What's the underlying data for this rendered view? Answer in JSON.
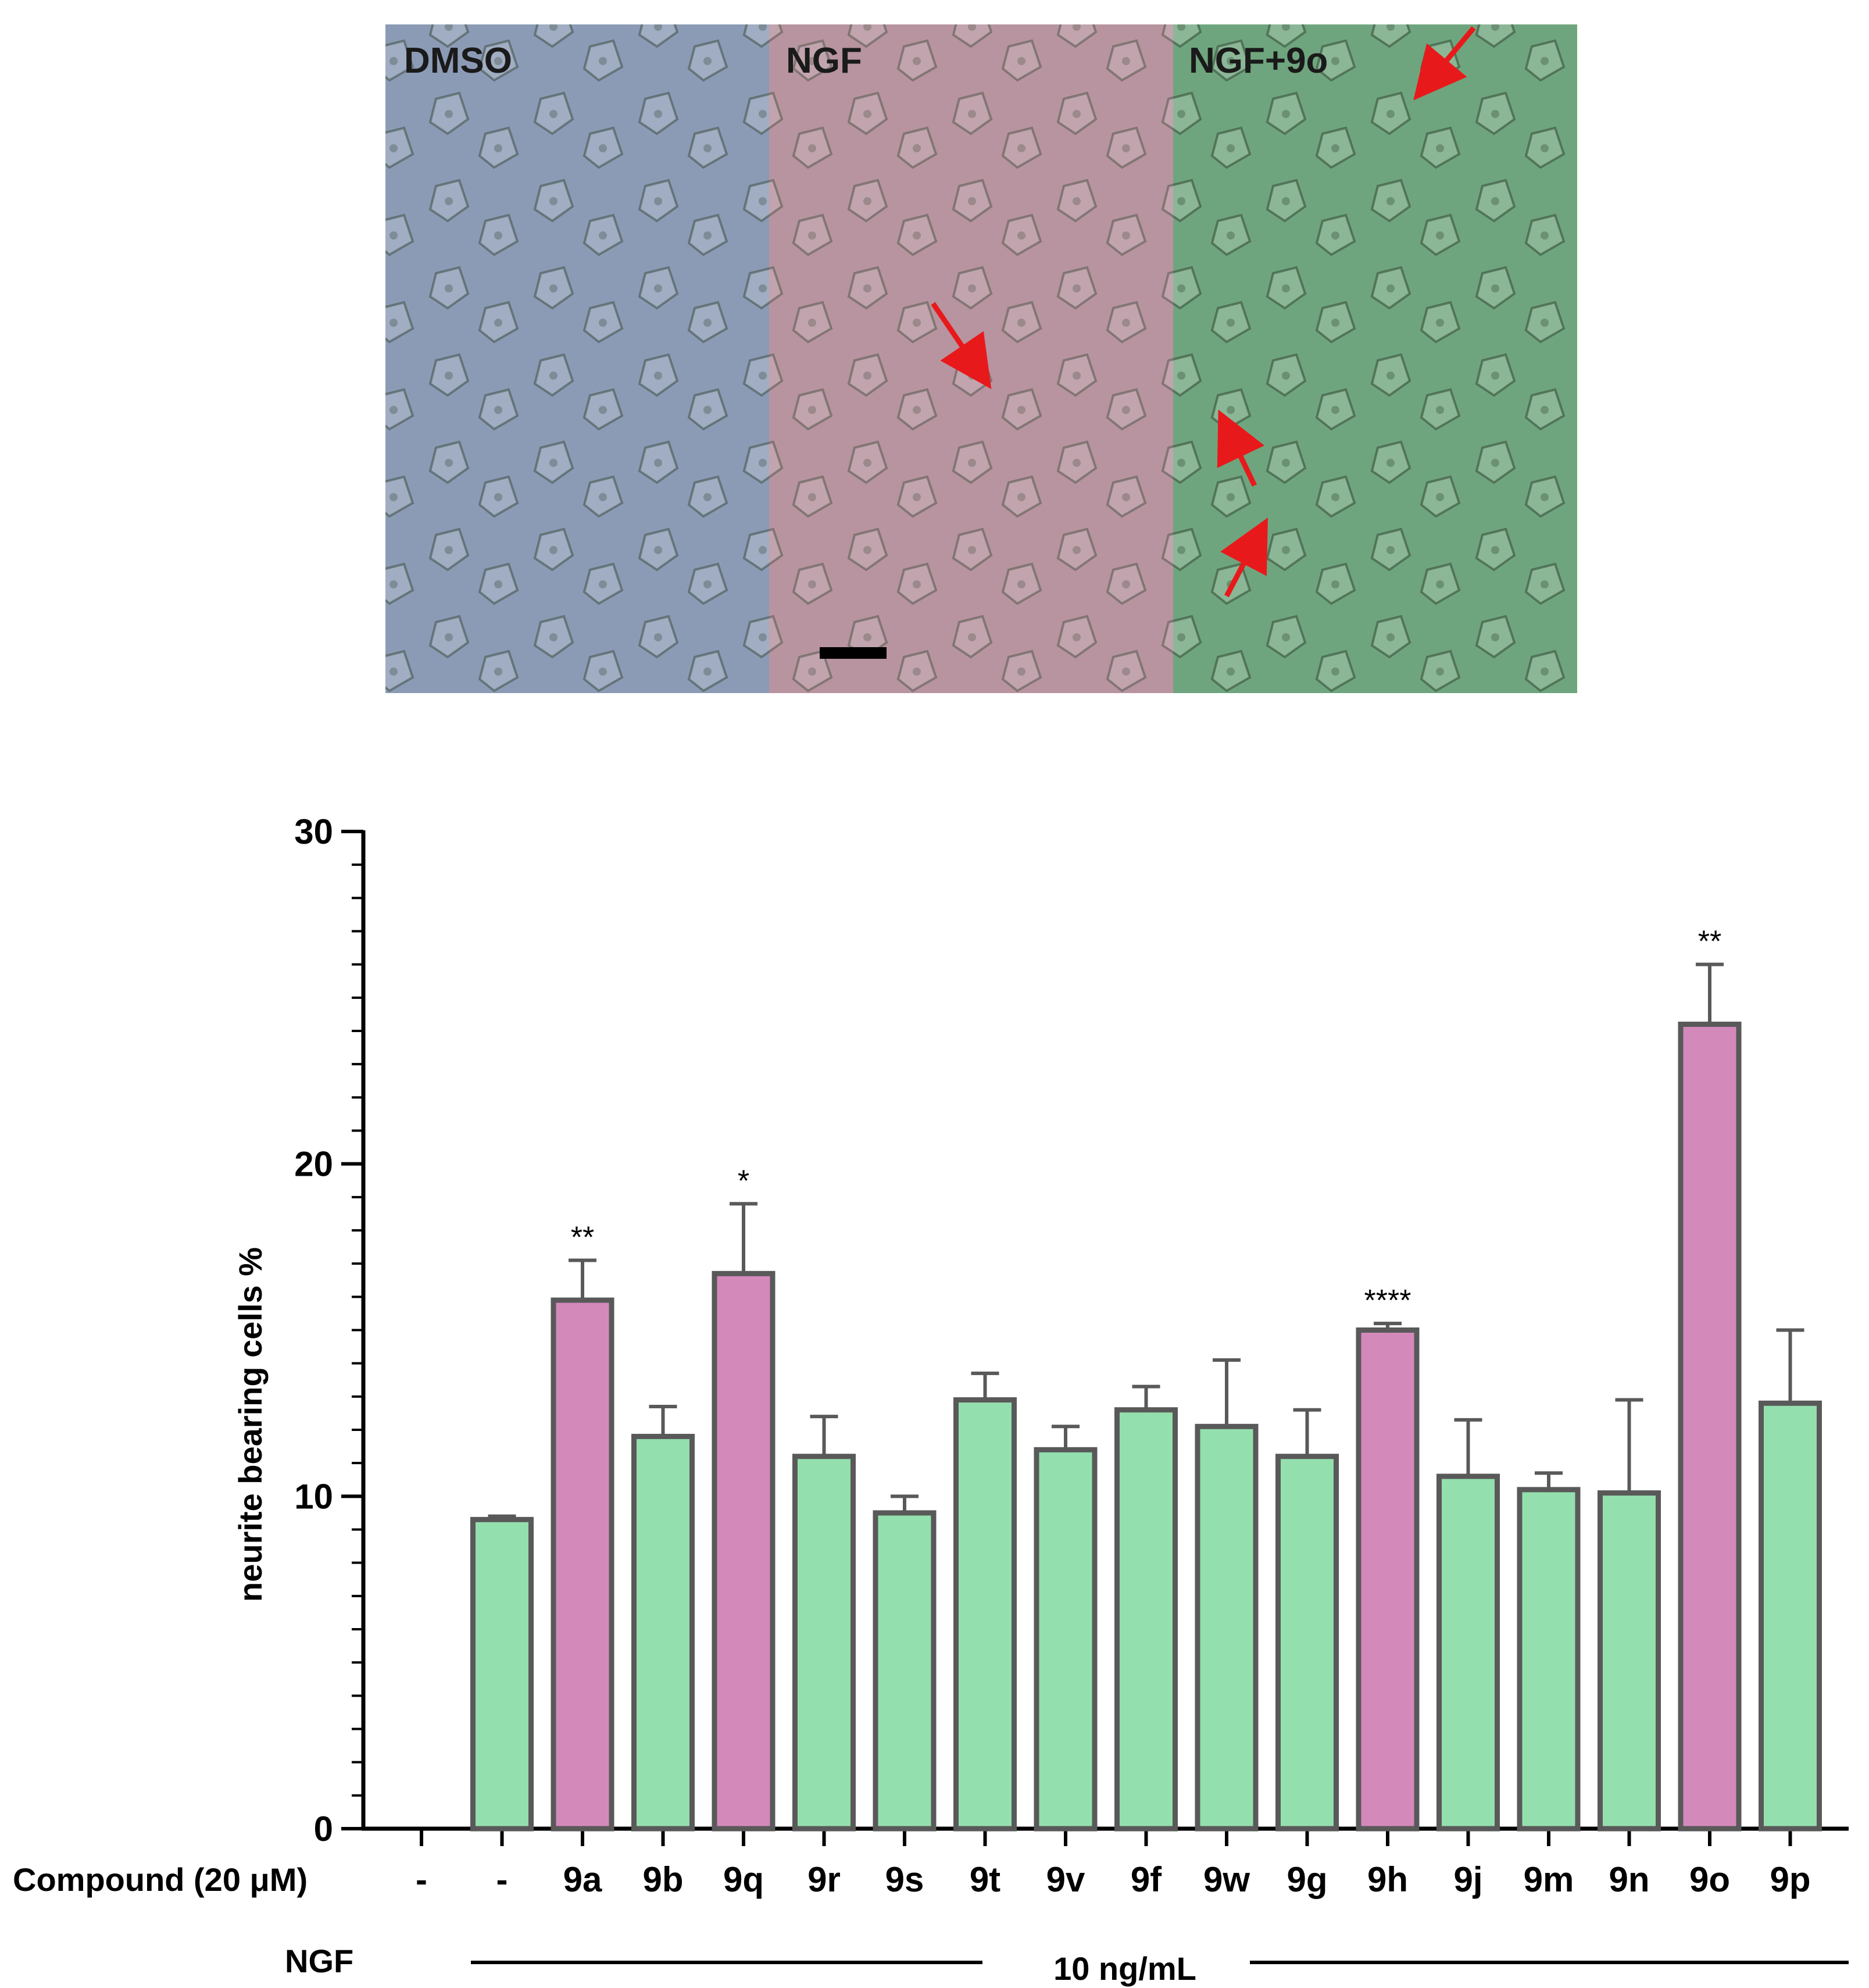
{
  "micrographs": {
    "panels": [
      {
        "label": "DMSO",
        "bg": "#8c9bb5"
      },
      {
        "label": "NGF",
        "bg": "#b7949f"
      },
      {
        "label": "NGF+9o",
        "bg": "#6fa57e"
      }
    ],
    "arrow_color": "#e8191b"
  },
  "chart_data": {
    "type": "bar",
    "ylabel": "neurite bearing cells %",
    "ylim": [
      0,
      30
    ],
    "yticks": [
      "0",
      "10",
      "20",
      "30"
    ],
    "x_axis_label": "Compound (20 μM)",
    "group_label_row": "NGF",
    "group_label_value": "10 ng/mL",
    "categories": [
      "-",
      "-",
      "9a",
      "9b",
      "9q",
      "9r",
      "9s",
      "9t",
      "9v",
      "9f",
      "9w",
      "9g",
      "9h",
      "9j",
      "9m",
      "9n",
      "9o",
      "9p"
    ],
    "values": [
      null,
      9.3,
      15.9,
      11.8,
      16.7,
      11.2,
      9.5,
      12.9,
      11.4,
      12.6,
      12.1,
      11.2,
      15.0,
      10.6,
      10.2,
      10.1,
      24.2,
      12.8
    ],
    "errors": [
      null,
      0.1,
      1.2,
      0.9,
      2.1,
      1.2,
      0.5,
      0.8,
      0.7,
      0.7,
      2.0,
      1.4,
      0.2,
      1.7,
      0.5,
      2.8,
      1.8,
      2.2
    ],
    "significance": [
      "",
      "",
      "**",
      "",
      "*",
      "",
      "",
      "",
      "",
      "",
      "",
      "",
      "****",
      "",
      "",
      "",
      "**",
      ""
    ],
    "highlight": [
      false,
      false,
      true,
      false,
      true,
      false,
      false,
      false,
      false,
      false,
      false,
      false,
      true,
      false,
      false,
      false,
      true,
      false
    ],
    "colors": {
      "bar": "#94dfae",
      "highlight": "#d489bb",
      "edge": "#595959"
    }
  }
}
